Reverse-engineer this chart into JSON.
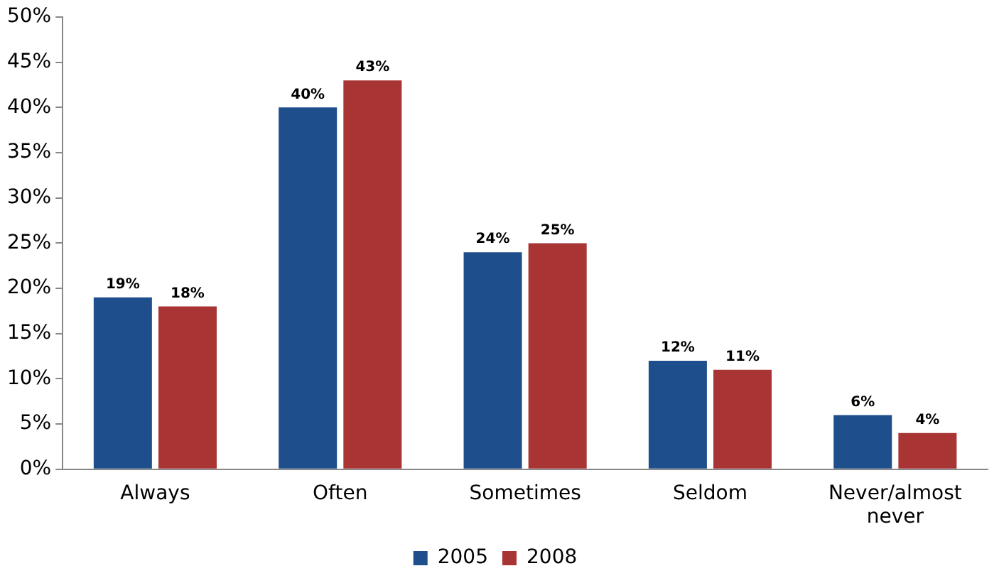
{
  "chart_data": {
    "type": "bar",
    "categories": [
      "Always",
      "Often",
      "Sometimes",
      "Seldom",
      "Never/almost never"
    ],
    "series": [
      {
        "name": "2005",
        "color": "#1f4e8c",
        "values": [
          19,
          40,
          24,
          12,
          6
        ],
        "value_labels": [
          "19%",
          "40%",
          "24%",
          "12%",
          "6%"
        ]
      },
      {
        "name": "2008",
        "color": "#a83434",
        "values": [
          18,
          43,
          25,
          11,
          4
        ],
        "value_labels": [
          "18%",
          "43%",
          "25%",
          "11%",
          "4%"
        ]
      }
    ],
    "ylim": [
      0,
      50
    ],
    "yticks": [
      {
        "value": 0,
        "label": "0%"
      },
      {
        "value": 5,
        "label": "5%"
      },
      {
        "value": 10,
        "label": "10%"
      },
      {
        "value": 15,
        "label": "15%"
      },
      {
        "value": 20,
        "label": "20%"
      },
      {
        "value": 25,
        "label": "25%"
      },
      {
        "value": 30,
        "label": "30%"
      },
      {
        "value": 35,
        "label": "35%"
      },
      {
        "value": 40,
        "label": "40%"
      },
      {
        "value": 45,
        "label": "45%"
      },
      {
        "value": 50,
        "label": "50%"
      }
    ],
    "grid": false,
    "legend": "bottom"
  }
}
